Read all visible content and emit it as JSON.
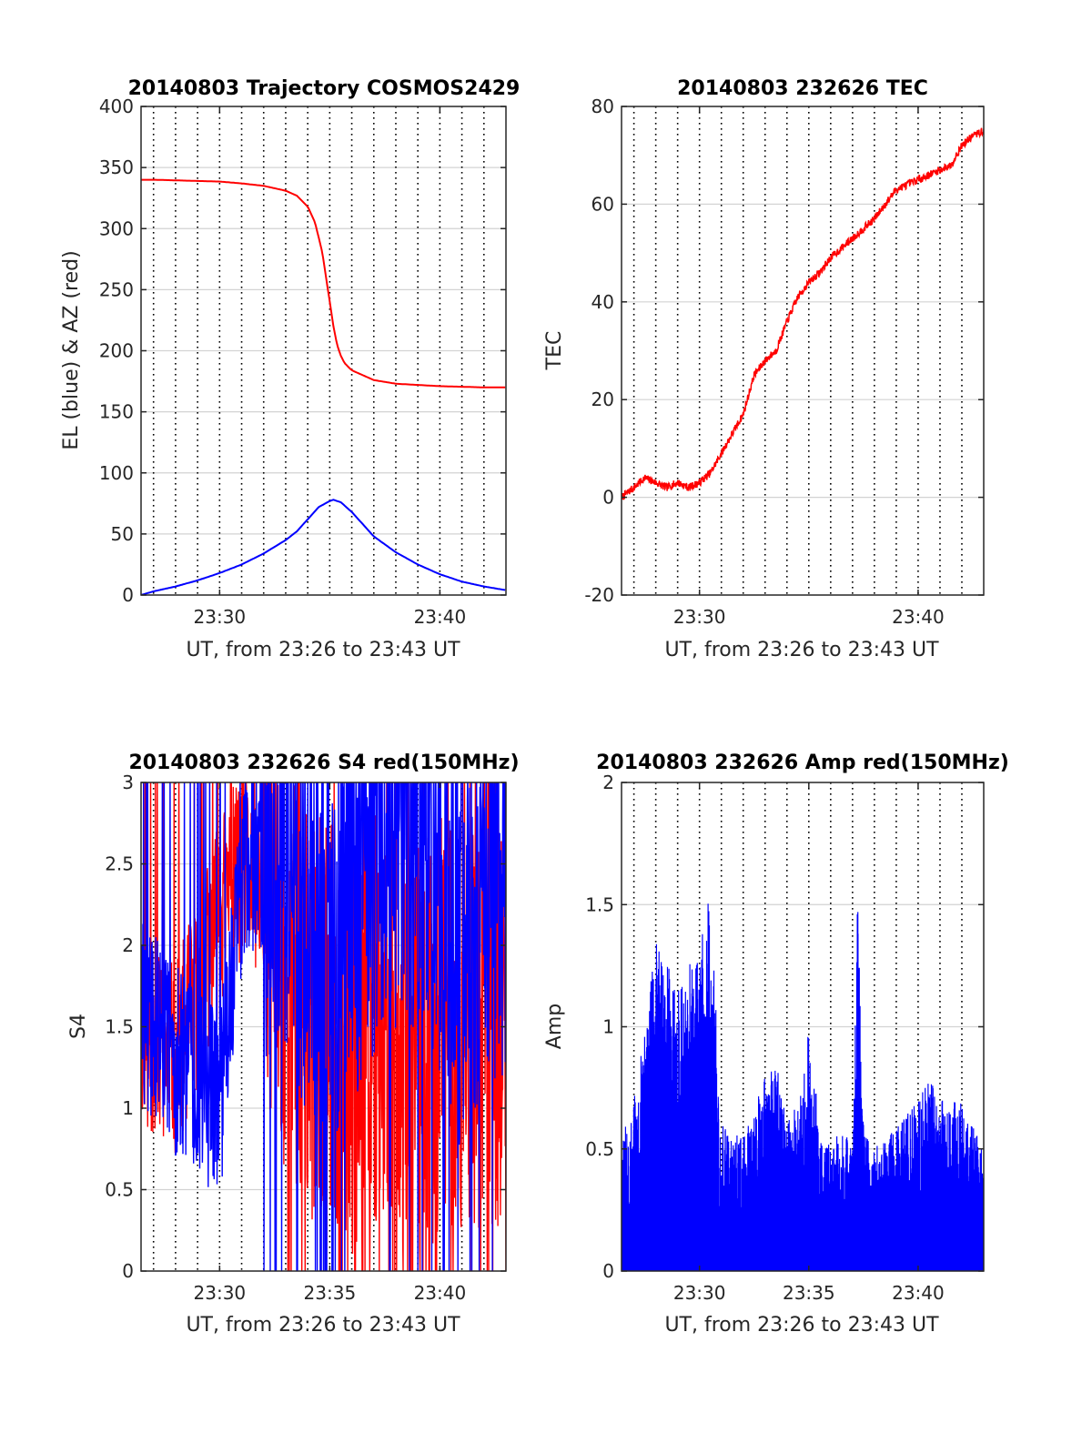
{
  "colors": {
    "red": "#ff0000",
    "blue": "#0000ff",
    "grid": "#d3d3d3",
    "dotted_grid": "#000000",
    "axes": "#262626"
  },
  "chart_data": [
    {
      "id": "trajectory",
      "type": "line",
      "title": "20140803 Trajectory COSMOS2429",
      "xlabel": "UT, from 23:26 to 23:43 UT",
      "ylabel": "EL (blue) & AZ (red)",
      "xlim": [
        "23:26:26",
        "23:43:00"
      ],
      "ylim": [
        0,
        400
      ],
      "yticks": [
        0,
        50,
        100,
        150,
        200,
        250,
        300,
        350,
        400
      ],
      "xtick_labels": [
        "23:30",
        "23:40"
      ],
      "minute_gridlines": true,
      "grid": true,
      "series": [
        {
          "color": "red",
          "x": [
            "23:26:26",
            "23:27",
            "23:28",
            "23:29",
            "23:30",
            "23:31",
            "23:32",
            "23:33",
            "23:33:30",
            "23:34",
            "23:34:20",
            "23:34:40",
            "23:35",
            "23:35:10",
            "23:35:20",
            "23:35:30",
            "23:35:40",
            "23:36",
            "23:36:30",
            "23:37",
            "23:38",
            "23:39",
            "23:40",
            "23:41",
            "23:42",
            "23:43"
          ],
          "values": [
            340,
            340,
            339.5,
            339,
            338.5,
            337,
            335,
            331,
            327,
            318,
            305,
            280,
            240,
            220,
            205,
            196,
            190,
            184,
            180,
            176,
            173,
            172,
            171,
            170.5,
            170,
            170
          ]
        },
        {
          "color": "blue",
          "x": [
            "23:26:26",
            "23:27",
            "23:28",
            "23:29",
            "23:30",
            "23:31",
            "23:32",
            "23:33",
            "23:33:30",
            "23:34",
            "23:34:30",
            "23:35",
            "23:35:10",
            "23:35:30",
            "23:36",
            "23:36:30",
            "23:37",
            "23:38",
            "23:39",
            "23:40",
            "23:41",
            "23:42",
            "23:43"
          ],
          "values": [
            0,
            3,
            7,
            12,
            18,
            25,
            34,
            45,
            52,
            62,
            72,
            77,
            78,
            76,
            68,
            58,
            48,
            35,
            25,
            17,
            11,
            7,
            4
          ]
        }
      ]
    },
    {
      "id": "tec",
      "type": "line",
      "title": "20140803 232626 TEC",
      "xlabel": "UT, from 23:26 to 23:43 UT",
      "ylabel": "TEC",
      "xlim": [
        "23:26:26",
        "23:43:00"
      ],
      "ylim": [
        -20,
        80
      ],
      "yticks": [
        -20,
        0,
        20,
        40,
        60,
        80
      ],
      "xtick_labels": [
        "23:30",
        "23:40"
      ],
      "minute_gridlines": true,
      "grid": true,
      "series": [
        {
          "color": "red",
          "x": [
            "23:26:26",
            "23:27",
            "23:27:30",
            "23:28",
            "23:28:30",
            "23:29",
            "23:29:30",
            "23:30",
            "23:30:30",
            "23:31",
            "23:31:30",
            "23:32",
            "23:32:30",
            "23:33",
            "23:33:30",
            "23:34",
            "23:34:30",
            "23:35",
            "23:35:30",
            "23:36",
            "23:36:30",
            "23:37",
            "23:37:30",
            "23:38",
            "23:38:30",
            "23:39",
            "23:39:30",
            "23:40",
            "23:40:30",
            "23:41",
            "23:41:30",
            "23:42",
            "23:42:30",
            "23:43"
          ],
          "values": [
            0,
            2,
            4,
            3,
            2,
            3,
            2,
            3,
            5,
            9,
            13,
            17,
            25,
            28,
            30,
            36,
            41,
            44,
            46,
            49,
            51,
            53,
            55,
            57,
            60,
            63,
            64,
            65,
            66,
            67,
            68,
            72,
            74,
            75
          ]
        }
      ]
    },
    {
      "id": "s4",
      "type": "line",
      "title": "20140803 232626 S4 red(150MHz)",
      "xlabel": "UT, from 23:26 to 23:43 UT",
      "ylabel": "S4",
      "xlim": [
        "23:26:26",
        "23:43:00"
      ],
      "ylim": [
        0,
        3
      ],
      "yticks": [
        0,
        0.5,
        1,
        1.5,
        2,
        2.5,
        3
      ],
      "xtick_labels": [
        "23:30",
        "23:35",
        "23:40"
      ],
      "minute_gridlines": true,
      "grid": true,
      "series": [
        {
          "color": "red",
          "x": [
            "23:26:26",
            "23:27",
            "23:28",
            "23:29",
            "23:30",
            "23:31",
            "23:32",
            "23:33",
            "23:34",
            "23:35",
            "23:36",
            "23:37",
            "23:38",
            "23:39",
            "23:40",
            "23:41",
            "23:42",
            "23:43"
          ],
          "values": [
            1.5,
            1.4,
            1.3,
            1.7,
            2.2,
            2.5,
            2.4,
            1.8,
            1.6,
            1.5,
            1.4,
            1.6,
            1.5,
            1.4,
            1.5,
            1.5,
            1.5,
            1.5
          ]
        },
        {
          "color": "blue",
          "x": [
            "23:26:26",
            "23:27",
            "23:28",
            "23:29",
            "23:30",
            "23:31",
            "23:32",
            "23:33",
            "23:34",
            "23:35",
            "23:36",
            "23:37",
            "23:38",
            "23:39",
            "23:40",
            "23:41",
            "23:42",
            "23:43"
          ],
          "values": [
            1.6,
            1.5,
            1.3,
            1.2,
            1.0,
            2.4,
            2.6,
            2.5,
            2.2,
            2.0,
            2.3,
            2.6,
            2.7,
            2.8,
            2.4,
            2.0,
            2.2,
            2.5
          ]
        }
      ]
    },
    {
      "id": "amp",
      "type": "line",
      "title": "20140803 232626 Amp red(150MHz)",
      "xlabel": "UT, from 23:26 to 23:43 UT",
      "ylabel": "Amp",
      "xlim": [
        "23:26:26",
        "23:43:00"
      ],
      "ylim": [
        0,
        2
      ],
      "yticks": [
        0,
        0.5,
        1,
        1.5,
        2
      ],
      "xtick_labels": [
        "23:30",
        "23:35",
        "23:40"
      ],
      "minute_gridlines": true,
      "grid": true,
      "series": [
        {
          "color": "blue",
          "x": [
            "23:26:26",
            "23:27",
            "23:28",
            "23:28:30",
            "23:29",
            "23:29:30",
            "23:30",
            "23:30:30",
            "23:31",
            "23:32",
            "23:33",
            "23:33:30",
            "23:34",
            "23:34:30",
            "23:35",
            "23:35:30",
            "23:36",
            "23:36:30",
            "23:37",
            "23:37:12",
            "23:37:30",
            "23:38",
            "23:39",
            "23:40",
            "23:40:30",
            "23:41",
            "23:42",
            "23:43"
          ],
          "values": [
            0.6,
            0.7,
            1.35,
            1.25,
            1.2,
            1.25,
            1.3,
            1.6,
            0.6,
            0.55,
            0.8,
            0.87,
            0.6,
            0.7,
            1.0,
            0.6,
            0.5,
            0.6,
            0.5,
            1.65,
            0.6,
            0.5,
            0.6,
            0.7,
            0.8,
            0.7,
            0.7,
            0.5
          ]
        }
      ]
    }
  ]
}
